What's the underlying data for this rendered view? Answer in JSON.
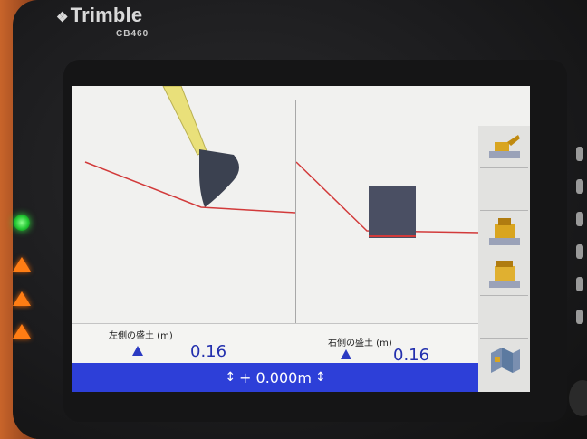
{
  "device": {
    "brand": "Trimble",
    "model": "CB460"
  },
  "colors": {
    "status_bar": "#2d3fd8",
    "value_text": "#2330ae",
    "design_line": "#d23a3a",
    "bucket": "#3b4150",
    "led_green": "#22c832",
    "led_warning": "#ff7d14"
  },
  "left_panel": {
    "label": "左側の盛土 (m)",
    "value": "0.16",
    "indicator": "arrow-up-icon"
  },
  "right_panel": {
    "label": "右側の盛土 (m)",
    "value": "0.16",
    "indicator": "arrow-up-icon"
  },
  "status": {
    "offset": "+ 0.000m"
  },
  "sidebar": {
    "buttons": [
      {
        "name": "view-side-button",
        "icon": "excavator-side-icon"
      },
      {
        "name": "blank-button",
        "icon": ""
      },
      {
        "name": "view-front-button",
        "icon": "excavator-front-icon"
      },
      {
        "name": "view-rear-button",
        "icon": "excavator-rear-icon"
      },
      {
        "name": "blank-button-2",
        "icon": ""
      },
      {
        "name": "map-view-button",
        "icon": "map-icon"
      }
    ]
  }
}
